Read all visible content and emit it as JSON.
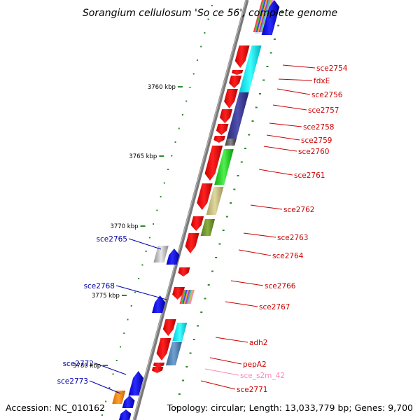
{
  "title": "Sorangium cellulosum 'So ce 56', complete genome",
  "footer": {
    "accession": "Accession: NC_010162",
    "summary": "Topology: circular; Length: 13,033,779 bp; Genes: 9,700"
  },
  "colors": {
    "backbone": "#808080",
    "forward_genes": "#ff0000",
    "reverse_genes": "#0000ff",
    "forward_labels": "#cc0000",
    "reverse_labels": "#0000aa",
    "misc_rna_label": "#ff88bb",
    "tick_marks": "#2a8a2a"
  },
  "scale_labels": [
    {
      "text": "3760 kbp",
      "kbp": 3760
    },
    {
      "text": "3765 kbp",
      "kbp": 3765
    },
    {
      "text": "3770 kbp",
      "kbp": 3770
    },
    {
      "text": "3775 kbp",
      "kbp": 3775
    },
    {
      "text": "3780 kbp",
      "kbp": 3780
    }
  ],
  "forward_labels": [
    {
      "text": "sce2754",
      "kind": "gene"
    },
    {
      "text": "fdxE",
      "kind": "gene"
    },
    {
      "text": "sce2756",
      "kind": "gene"
    },
    {
      "text": "sce2757",
      "kind": "gene"
    },
    {
      "text": "sce2758",
      "kind": "gene"
    },
    {
      "text": "sce2759",
      "kind": "gene"
    },
    {
      "text": "sce2760",
      "kind": "gene"
    },
    {
      "text": "sce2761",
      "kind": "gene"
    },
    {
      "text": "sce2762",
      "kind": "gene"
    },
    {
      "text": "sce2763",
      "kind": "gene"
    },
    {
      "text": "sce2764",
      "kind": "gene"
    },
    {
      "text": "sce2766",
      "kind": "gene"
    },
    {
      "text": "sce2767",
      "kind": "gene"
    },
    {
      "text": "adh2",
      "kind": "gene"
    },
    {
      "text": "pepA2",
      "kind": "gene"
    },
    {
      "text": "sce_s2m_42",
      "kind": "misc_rna"
    },
    {
      "text": "sce2771",
      "kind": "gene"
    }
  ],
  "reverse_labels": [
    {
      "text": "sce2765"
    },
    {
      "text": "sce2768"
    },
    {
      "text": "sce2772"
    },
    {
      "text": "sce2773"
    }
  ]
}
